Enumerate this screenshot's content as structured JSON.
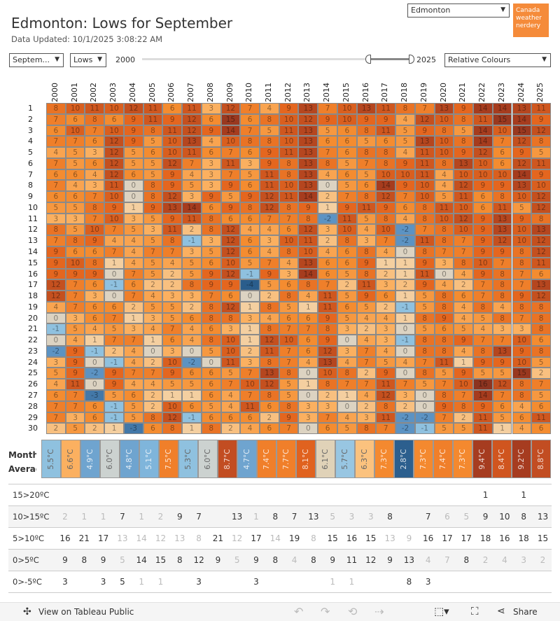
{
  "header": {
    "title": "Edmonton: Lows for September",
    "updated": "Data Updated: 10/1/2025 3:08:22 AM",
    "city": "Edmonton",
    "logo_text": "Canada weather nerdery"
  },
  "controls": {
    "month": "Septem...",
    "measure": "Lows",
    "year_start": "2000",
    "year_end": "2025",
    "colour_mode": "Relative Colours",
    "slider_range": [
      2022,
      2025
    ]
  },
  "years": [
    "2000",
    "2001",
    "2002",
    "2003",
    "2004",
    "2005",
    "2006",
    "2007",
    "2008",
    "2009",
    "2010",
    "2011",
    "2012",
    "2013",
    "2014",
    "2015",
    "2016",
    "2017",
    "2018",
    "2019",
    "2020",
    "2021",
    "2022",
    "2023",
    "2024",
    "2025"
  ],
  "days": [
    "1",
    "2",
    "3",
    "4",
    "5",
    "6",
    "7",
    "8",
    "9",
    "10",
    "11",
    "12",
    "13",
    "14",
    "15",
    "16",
    "17",
    "18",
    "19",
    "20",
    "21",
    "22",
    "23",
    "24",
    "25",
    "26",
    "27",
    "28",
    "29",
    "30"
  ],
  "chart_data": {
    "type": "heatmap",
    "xlabel": "Year",
    "ylabel": "Day of September",
    "values": [
      [
        8,
        10,
        11,
        10,
        12,
        11,
        6,
        11,
        3,
        12,
        7,
        4,
        9,
        13,
        7,
        10,
        13,
        11,
        8,
        7,
        13,
        9,
        14,
        14,
        13,
        11
      ],
      [
        7,
        6,
        8,
        6,
        9,
        11,
        9,
        12,
        6,
        15,
        6,
        8,
        10,
        12,
        9,
        10,
        9,
        9,
        4,
        12,
        10,
        8,
        11,
        15,
        14,
        9
      ],
      [
        6,
        10,
        7,
        10,
        9,
        8,
        11,
        12,
        9,
        14,
        7,
        5,
        11,
        13,
        5,
        6,
        8,
        11,
        5,
        9,
        8,
        5,
        14,
        10,
        15,
        12
      ],
      [
        7,
        7,
        6,
        12,
        9,
        5,
        10,
        13,
        4,
        10,
        8,
        8,
        10,
        13,
        6,
        6,
        5,
        6,
        5,
        13,
        10,
        8,
        14,
        7,
        12,
        8
      ],
      [
        4,
        5,
        3,
        12,
        5,
        6,
        10,
        11,
        6,
        7,
        6,
        9,
        11,
        13,
        7,
        6,
        8,
        8,
        4,
        11,
        10,
        9,
        12,
        6,
        9,
        5
      ],
      [
        7,
        5,
        6,
        12,
        5,
        5,
        12,
        7,
        3,
        11,
        3,
        9,
        8,
        13,
        8,
        5,
        7,
        8,
        9,
        11,
        8,
        13,
        10,
        6,
        12,
        11
      ],
      [
        6,
        6,
        4,
        12,
        6,
        5,
        9,
        4,
        3,
        7,
        5,
        11,
        8,
        13,
        4,
        6,
        5,
        10,
        10,
        11,
        4,
        10,
        10,
        10,
        14,
        9
      ],
      [
        7,
        4,
        3,
        11,
        0,
        8,
        9,
        5,
        3,
        9,
        6,
        11,
        10,
        13,
        0,
        5,
        6,
        14,
        9,
        10,
        4,
        12,
        9,
        9,
        13,
        10
      ],
      [
        6,
        6,
        7,
        10,
        0,
        8,
        12,
        3,
        9,
        5,
        9,
        12,
        11,
        14,
        2,
        7,
        8,
        12,
        7,
        10,
        5,
        11,
        6,
        8,
        10,
        12
      ],
      [
        5,
        5,
        8,
        9,
        1,
        9,
        13,
        14,
        6,
        9,
        8,
        12,
        8,
        9,
        1,
        9,
        11,
        9,
        6,
        8,
        11,
        10,
        6,
        11,
        5,
        12
      ],
      [
        3,
        3,
        7,
        10,
        3,
        5,
        9,
        11,
        8,
        6,
        6,
        7,
        7,
        8,
        -2,
        11,
        5,
        8,
        4,
        8,
        10,
        12,
        9,
        13,
        9,
        8
      ],
      [
        8,
        5,
        10,
        7,
        5,
        3,
        11,
        2,
        8,
        12,
        4,
        4,
        6,
        12,
        3,
        10,
        4,
        10,
        -2,
        7,
        8,
        10,
        9,
        13,
        10,
        13
      ],
      [
        7,
        8,
        9,
        4,
        4,
        5,
        8,
        -1,
        3,
        12,
        6,
        3,
        10,
        11,
        2,
        8,
        3,
        7,
        -2,
        11,
        8,
        7,
        9,
        12,
        10,
        12
      ],
      [
        9,
        6,
        6,
        7,
        4,
        7,
        7,
        3,
        5,
        12,
        6,
        4,
        8,
        10,
        4,
        6,
        8,
        4,
        0,
        8,
        7,
        7,
        9,
        9,
        8,
        12
      ],
      [
        9,
        10,
        8,
        1,
        4,
        5,
        4,
        5,
        6,
        10,
        5,
        7,
        4,
        13,
        6,
        6,
        9,
        1,
        1,
        9,
        3,
        8,
        10,
        7,
        8,
        11
      ],
      [
        9,
        9,
        9,
        0,
        7,
        5,
        2,
        5,
        9,
        12,
        -1,
        9,
        3,
        14,
        6,
        5,
        8,
        2,
        1,
        11,
        0,
        4,
        9,
        8,
        7,
        6
      ],
      [
        12,
        7,
        6,
        -1,
        6,
        2,
        2,
        8,
        9,
        9,
        -4,
        5,
        6,
        8,
        7,
        2,
        11,
        3,
        2,
        9,
        4,
        2,
        7,
        8,
        7,
        13
      ],
      [
        12,
        7,
        3,
        0,
        7,
        4,
        3,
        3,
        7,
        6,
        0,
        2,
        8,
        4,
        11,
        5,
        9,
        6,
        1,
        5,
        8,
        6,
        7,
        8,
        9,
        12
      ],
      [
        4,
        7,
        6,
        6,
        2,
        5,
        5,
        2,
        8,
        12,
        1,
        8,
        5,
        1,
        11,
        6,
        5,
        2,
        -1,
        5,
        8,
        4,
        8,
        4,
        8,
        8
      ],
      [
        0,
        3,
        6,
        7,
        1,
        3,
        5,
        6,
        8,
        8,
        3,
        4,
        6,
        6,
        9,
        5,
        4,
        4,
        1,
        8,
        9,
        4,
        5,
        8,
        7,
        8
      ],
      [
        -1,
        5,
        4,
        5,
        3,
        4,
        7,
        4,
        6,
        3,
        1,
        8,
        7,
        7,
        8,
        3,
        2,
        3,
        0,
        5,
        6,
        5,
        4,
        3,
        3,
        8
      ],
      [
        0,
        4,
        1,
        7,
        7,
        1,
        6,
        4,
        8,
        10,
        1,
        12,
        10,
        6,
        9,
        0,
        4,
        3,
        -1,
        8,
        8,
        9,
        7,
        7,
        10,
        6
      ],
      [
        -2,
        9,
        -1,
        2,
        4,
        0,
        3,
        0,
        5,
        10,
        2,
        11,
        7,
        6,
        12,
        3,
        7,
        4,
        0,
        8,
        8,
        4,
        8,
        13,
        9,
        8
      ],
      [
        3,
        9,
        0,
        -1,
        4,
        2,
        10,
        -2,
        0,
        11,
        3,
        8,
        7,
        4,
        13,
        4,
        7,
        5,
        4,
        7,
        11,
        1,
        9,
        9,
        10,
        5
      ],
      [
        5,
        9,
        -2,
        9,
        7,
        7,
        9,
        6,
        6,
        5,
        7,
        13,
        8,
        0,
        10,
        8,
        2,
        9,
        0,
        8,
        5,
        9,
        5,
        5,
        15,
        2
      ],
      [
        4,
        11,
        0,
        9,
        4,
        4,
        5,
        5,
        6,
        7,
        10,
        12,
        5,
        1,
        8,
        7,
        7,
        11,
        7,
        5,
        7,
        10,
        16,
        12,
        8,
        7
      ],
      [
        6,
        7,
        -3,
        5,
        6,
        2,
        1,
        1,
        6,
        4,
        7,
        8,
        5,
        0,
        2,
        1,
        4,
        12,
        3,
        0,
        8,
        7,
        14,
        7,
        8,
        5
      ],
      [
        7,
        7,
        6,
        -1,
        5,
        2,
        10,
        6,
        5,
        4,
        11,
        6,
        8,
        3,
        3,
        0,
        2,
        8,
        2,
        0,
        9,
        8,
        9,
        6,
        4,
        6
      ],
      [
        7,
        3,
        6,
        -1,
        5,
        8,
        12,
        -1,
        6,
        6,
        6,
        2,
        9,
        3,
        7,
        4,
        3,
        11,
        -2,
        -2,
        7,
        2,
        11,
        5,
        6,
        11
      ],
      [
        2,
        5,
        2,
        1,
        -3,
        6,
        8,
        1,
        8,
        2,
        4,
        6,
        7,
        0,
        6,
        5,
        8,
        7,
        -2,
        -1,
        5,
        5,
        11,
        1,
        4,
        6
      ]
    ]
  },
  "averages": {
    "label": "Month Averag",
    "values": [
      "5.5°C",
      "6.6°C",
      "4.9°C",
      "6.0°C",
      "4.8°C",
      "5.1°C",
      "7.5°C",
      "5.3°C",
      "6.0°C",
      "8.7°C",
      "4.7°C",
      "7.4°C",
      "7.7°C",
      "8.1°C",
      "6.1°C",
      "5.7°C",
      "6.3°C",
      "7.3°C",
      "2.8°C",
      "7.3°C",
      "7.4°C",
      "7.3°C",
      "9.4°C",
      "8.4°C",
      "9.2°C",
      "8.8°C"
    ],
    "colors": [
      "#8fc1df",
      "#fbb060",
      "#6fa4cf",
      "#ccd2d0",
      "#6fa4cf",
      "#7fb5db",
      "#f07f2a",
      "#8fc1df",
      "#ccd2d0",
      "#c24d22",
      "#6fa4cf",
      "#f07f2a",
      "#f07f2a",
      "#e0621f",
      "#e0d2b8",
      "#98c6e2",
      "#fbc27e",
      "#f4892f",
      "#2c5f8e",
      "#f4892f",
      "#f07f2a",
      "#f4892f",
      "#a63c20",
      "#d0551f",
      "#a63c20",
      "#c24d22"
    ]
  },
  "buckets": [
    {
      "label": "15>20ºC",
      "counts": [
        "",
        "",
        "",
        "",
        "",
        "",
        "",
        "",
        "",
        "",
        "",
        "",
        "",
        "",
        "",
        "",
        "",
        "",
        "",
        "",
        "",
        "",
        "1",
        "",
        "1",
        ""
      ]
    },
    {
      "label": "10>15ºC",
      "counts": [
        "2",
        "1",
        "1",
        "7",
        "1",
        "2",
        "9",
        "7",
        "",
        "13",
        "1",
        "8",
        "7",
        "13",
        "5",
        "3",
        "3",
        "8",
        "",
        "7",
        "6",
        "5",
        "9",
        "10",
        "8",
        "13"
      ]
    },
    {
      "label": "5>10ºC",
      "counts": [
        "16",
        "21",
        "17",
        "13",
        "14",
        "12",
        "13",
        "8",
        "21",
        "12",
        "17",
        "14",
        "19",
        "8",
        "15",
        "16",
        "15",
        "13",
        "9",
        "16",
        "17",
        "17",
        "18",
        "16",
        "18",
        "15"
      ]
    },
    {
      "label": "0>5ºC",
      "counts": [
        "9",
        "8",
        "9",
        "5",
        "14",
        "15",
        "8",
        "12",
        "9",
        "5",
        "9",
        "8",
        "4",
        "8",
        "9",
        "11",
        "12",
        "9",
        "13",
        "4",
        "7",
        "8",
        "2",
        "4",
        "3",
        "2"
      ]
    },
    {
      "label": "0>-5ºC",
      "counts": [
        "3",
        "",
        "3",
        "5",
        "1",
        "1",
        "",
        "3",
        "",
        "",
        "3",
        "",
        "",
        "",
        "1",
        "1",
        "",
        "",
        "8",
        "3",
        "",
        "",
        "",
        "",
        "",
        ""
      ]
    }
  ],
  "footer": {
    "view_label": "View on Tableau Public",
    "share_label": "Share"
  },
  "colors": {
    "accent": "#f58b3a"
  }
}
